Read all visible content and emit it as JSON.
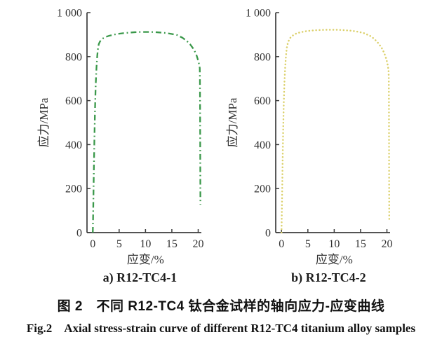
{
  "figure": {
    "caption_zh": "图 2　不同 R12-TC4 钛合金试样的轴向应力-应变曲线",
    "caption_en": "Fig.2　Axial stress-strain curve of different R12-TC4 titanium alloy samples"
  },
  "chart_data": [
    {
      "type": "line",
      "title": "a) R12-TC4-1",
      "xlabel": "应变/%",
      "ylabel": "应力/MPa",
      "xlim": [
        -1.1,
        20.6
      ],
      "ylim": [
        0,
        1000
      ],
      "xticks": [
        0,
        5,
        10,
        15,
        20
      ],
      "xtick_labels": [
        "0",
        "5",
        "10",
        "15",
        "20"
      ],
      "ytick_values": [
        0,
        200,
        400,
        600,
        800,
        1000
      ],
      "ytick_labels": [
        "0",
        "200",
        "400",
        "600",
        "800",
        "1 000"
      ],
      "grid": false,
      "legend": "none",
      "line_style": "dash-dot",
      "color": "#3a984a",
      "series": [
        {
          "name": "R12-TC4-1",
          "x": [
            0,
            0.05,
            0.12,
            0.2,
            0.3,
            0.42,
            0.55,
            0.7,
            0.85,
            1.0,
            1.15,
            1.35,
            1.6,
            2.0,
            2.5,
            3.0,
            4.0,
            5.0,
            6.0,
            7.0,
            8.0,
            9.0,
            10.0,
            11.0,
            12.0,
            13.0,
            14.0,
            15.0,
            16.0,
            17.0,
            17.8,
            18.5,
            19.2,
            19.7,
            20.0,
            20.2,
            20.3,
            20.33,
            20.36,
            20.39,
            20.42
          ],
          "y": [
            0,
            60,
            160,
            280,
            420,
            560,
            670,
            750,
            805,
            840,
            858,
            868,
            876,
            884,
            890,
            894,
            900,
            904,
            907,
            909,
            911,
            912,
            912,
            912,
            911,
            909,
            907,
            903,
            898,
            886,
            872,
            855,
            832,
            805,
            782,
            762,
            748,
            700,
            560,
            350,
            127
          ]
        }
      ]
    },
    {
      "type": "line",
      "title": "b) R12-TC4-2",
      "xlabel": "应变/%",
      "ylabel": "应力/MPa",
      "xlim": [
        -1.1,
        20.6
      ],
      "ylim": [
        0,
        1000
      ],
      "xticks": [
        0,
        5,
        10,
        15,
        20
      ],
      "xtick_labels": [
        "0",
        "5",
        "10",
        "15",
        "20"
      ],
      "ytick_values": [
        0,
        200,
        400,
        600,
        800,
        1000
      ],
      "ytick_labels": [
        "0",
        "200",
        "400",
        "600",
        "800",
        "1 000"
      ],
      "grid": false,
      "legend": "none",
      "line_style": "dotted",
      "color": "#dbd06a",
      "series": [
        {
          "name": "R12-TC4-2",
          "x": [
            0,
            0.05,
            0.12,
            0.2,
            0.3,
            0.42,
            0.55,
            0.7,
            0.85,
            1.0,
            1.2,
            1.45,
            1.75,
            2.2,
            2.8,
            3.5,
            4.5,
            5.5,
            6.5,
            7.5,
            8.5,
            9.5,
            10.5,
            11.5,
            12.5,
            13.5,
            14.5,
            15.5,
            16.0,
            17.0,
            17.7,
            18.4,
            19.0,
            19.5,
            19.9,
            20.15,
            20.3,
            20.35,
            20.38,
            20.4,
            20.42,
            20.44
          ],
          "y": [
            0,
            70,
            180,
            310,
            450,
            580,
            680,
            755,
            805,
            840,
            862,
            877,
            888,
            897,
            905,
            910,
            915,
            918,
            920,
            921,
            922,
            922,
            922,
            921,
            919,
            917,
            913,
            908,
            903,
            892,
            878,
            860,
            840,
            816,
            788,
            762,
            738,
            710,
            600,
            400,
            200,
            57
          ]
        }
      ]
    }
  ]
}
